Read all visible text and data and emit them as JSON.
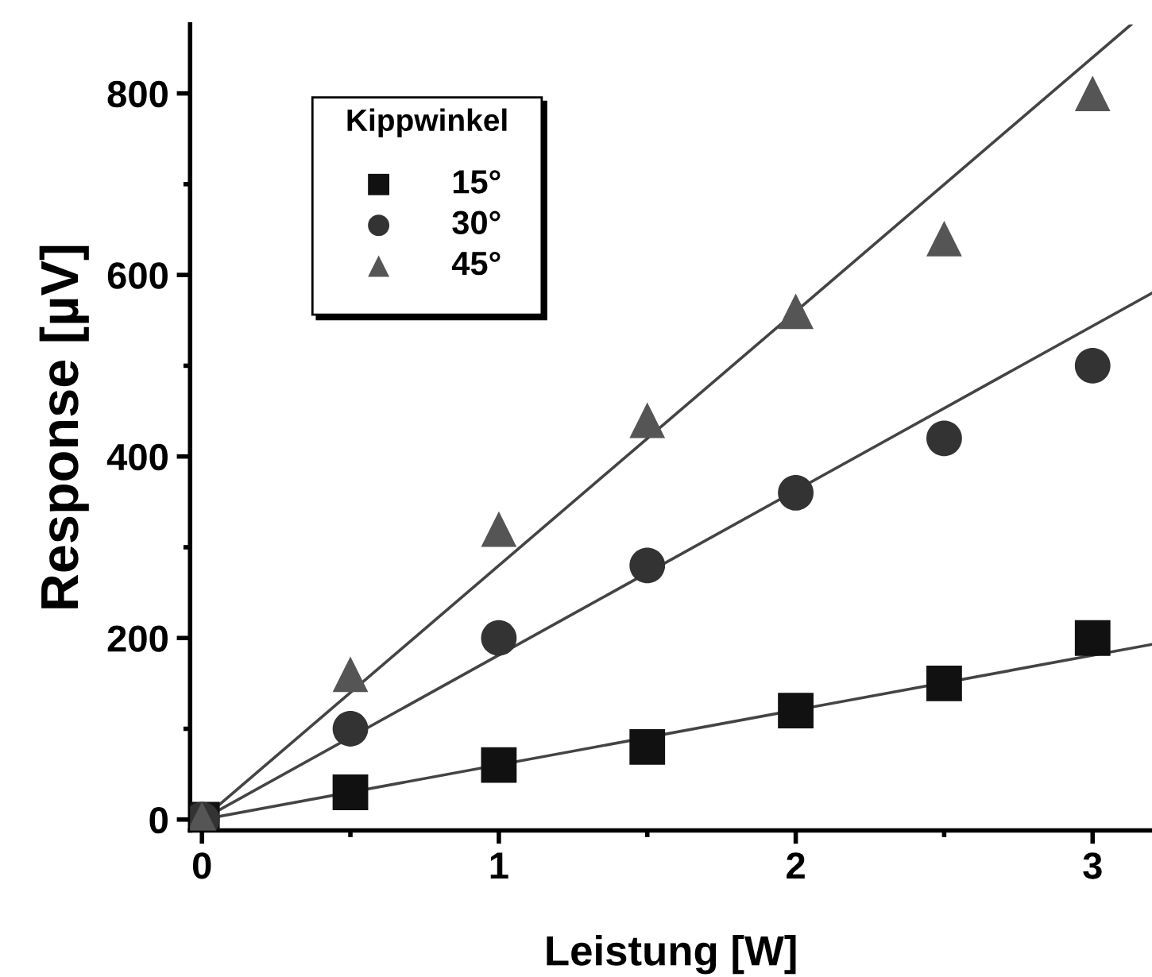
{
  "chart_data": {
    "type": "scatter",
    "xlabel": "Leistung [W]",
    "ylabel": "Response [µV]",
    "legend_title": "Kippwinkel",
    "legend": "top left",
    "x": [
      0,
      0.5,
      1,
      1.5,
      2,
      2.5,
      3
    ],
    "series": [
      {
        "name": "15°",
        "color": "#111111",
        "marker": "square",
        "values": [
          0,
          30,
          60,
          80,
          120,
          150,
          200
        ]
      },
      {
        "name": "30°",
        "color": "#333333",
        "marker": "circle",
        "values": [
          0,
          100,
          200,
          280,
          360,
          420,
          500
        ]
      },
      {
        "name": "45°",
        "color": "#555555",
        "marker": "triangle",
        "values": [
          0,
          160,
          320,
          440,
          560,
          640,
          800
        ]
      },
      {
        "type": "line",
        "color": "#444444",
        "x": [
          0,
          3.2
        ],
        "values": [
          0,
          193
        ]
      },
      {
        "type": "line",
        "color": "#444444",
        "x": [
          0,
          3.2
        ],
        "values": [
          0,
          580
        ]
      },
      {
        "type": "line",
        "color": "#444444",
        "x": [
          0,
          3.13
        ],
        "values": [
          0,
          876
        ]
      }
    ],
    "xlim": [
      -0.04,
      3.2
    ],
    "ylim": [
      -12,
      876
    ],
    "xticks": [
      0,
      1,
      2,
      3
    ],
    "yticks": [
      0,
      200,
      400,
      600,
      800
    ],
    "grid": false
  }
}
